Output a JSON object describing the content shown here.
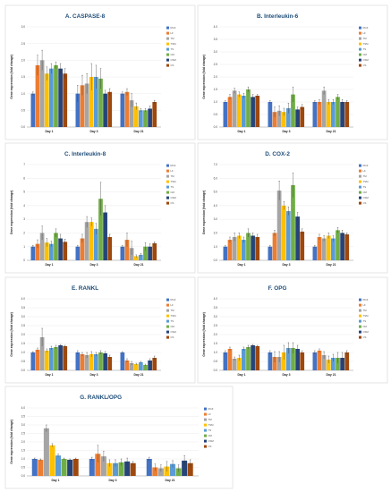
{
  "colors": {
    "RGF": "#4472c4",
    "LF": "#ed7d31",
    "TM": "#a5a5a5",
    "TSM": "#ffc000",
    "TS": "#5b9bd5",
    "CM": "#70ad47",
    "CSM": "#264478",
    "CS": "#9e480e"
  },
  "chart_data": [
    {
      "type": "bar",
      "title": "A. CASPASE-8",
      "ylabel": "Gene expression (fold change)",
      "categories": [
        "Day 1",
        "Day 3",
        "Day 21"
      ],
      "legend": [
        "RGF",
        "LF",
        "TM",
        "TSM",
        "TS",
        "CM",
        "CSM",
        "CS"
      ],
      "ylim": [
        0,
        3.0
      ],
      "yticks": [
        "0.0",
        "0.5",
        "1.0",
        "1.5",
        "2.0",
        "2.5",
        "3.0"
      ],
      "series": [
        {
          "name": "RGF",
          "values": [
            1.0,
            1.0,
            1.0
          ],
          "errors": [
            0.05,
            0.25,
            0.05
          ]
        },
        {
          "name": "LF",
          "values": [
            1.85,
            1.25,
            1.05
          ],
          "errors": [
            0.3,
            0.3,
            0.1
          ]
        },
        {
          "name": "TM",
          "values": [
            2.0,
            1.3,
            0.8
          ],
          "errors": [
            0.3,
            0.3,
            0.2
          ]
        },
        {
          "name": "TSM",
          "values": [
            1.6,
            1.5,
            0.62
          ],
          "errors": [
            0.2,
            0.4,
            0.1
          ]
        },
        {
          "name": "TS",
          "values": [
            1.75,
            1.5,
            0.5
          ],
          "errors": [
            0.15,
            0.35,
            0.05
          ]
        },
        {
          "name": "CM",
          "values": [
            1.85,
            1.45,
            0.5
          ],
          "errors": [
            0.1,
            0.3,
            0.05
          ]
        },
        {
          "name": "CSM",
          "values": [
            1.75,
            1.0,
            0.55
          ],
          "errors": [
            0.15,
            0.1,
            0.08
          ]
        },
        {
          "name": "CS",
          "values": [
            1.6,
            1.05,
            0.75
          ],
          "errors": [
            0.15,
            0.1,
            0.05
          ]
        }
      ]
    },
    {
      "type": "bar",
      "title": "B. Interleukin-6",
      "ylabel": "Gene expression (fold change)",
      "categories": [
        "Day 1",
        "Day 3",
        "Day 21"
      ],
      "legend": [
        "RGF",
        "LF",
        "TM",
        "TSM",
        "TS",
        "CM",
        "CSM",
        "CS"
      ],
      "ylim": [
        0,
        4.0
      ],
      "yticks": [
        "0.0",
        "0.5",
        "1.0",
        "1.5",
        "2.0",
        "2.5",
        "3.0",
        "3.5",
        "4.0"
      ],
      "series": [
        {
          "name": "RGF",
          "values": [
            1.0,
            1.0,
            1.0
          ],
          "errors": [
            0.05,
            0.05,
            0.05
          ]
        },
        {
          "name": "LF",
          "values": [
            1.2,
            0.6,
            1.0
          ],
          "errors": [
            0.1,
            0.2,
            0.1
          ]
        },
        {
          "name": "TM",
          "values": [
            1.45,
            0.65,
            1.45
          ],
          "errors": [
            0.1,
            0.2,
            0.15
          ]
        },
        {
          "name": "TSM",
          "values": [
            1.3,
            0.6,
            1.0
          ],
          "errors": [
            0.1,
            0.15,
            0.1
          ]
        },
        {
          "name": "TS",
          "values": [
            1.25,
            0.75,
            1.0
          ],
          "errors": [
            0.1,
            0.2,
            0.1
          ]
        },
        {
          "name": "CM",
          "values": [
            1.5,
            1.3,
            1.2
          ],
          "errors": [
            0.1,
            0.3,
            0.1
          ]
        },
        {
          "name": "CSM",
          "values": [
            1.2,
            0.7,
            1.0
          ],
          "errors": [
            0.1,
            0.1,
            0.1
          ]
        },
        {
          "name": "CS",
          "values": [
            1.25,
            0.8,
            1.0
          ],
          "errors": [
            0.05,
            0.1,
            0.05
          ]
        }
      ]
    },
    {
      "type": "bar",
      "title": "C. Interleukin-8",
      "ylabel": "Gene expression (fold change)",
      "categories": [
        "Day 1",
        "Day 3",
        "Day 21"
      ],
      "legend": [
        "RGF",
        "LF",
        "TM",
        "TSM",
        "TS",
        "CM",
        "CSM",
        "CS"
      ],
      "ylim": [
        0,
        7.0
      ],
      "yticks": [
        "0",
        "1",
        "2",
        "3",
        "4",
        "5",
        "6",
        "7"
      ],
      "series": [
        {
          "name": "RGF",
          "values": [
            1.0,
            1.0,
            1.0
          ],
          "errors": [
            0.1,
            0.1,
            0.1
          ]
        },
        {
          "name": "LF",
          "values": [
            1.2,
            1.6,
            1.5
          ],
          "errors": [
            0.3,
            0.3,
            0.5
          ]
        },
        {
          "name": "TM",
          "values": [
            2.0,
            2.8,
            0.9
          ],
          "errors": [
            0.5,
            0.4,
            0.5
          ]
        },
        {
          "name": "TSM",
          "values": [
            1.3,
            2.8,
            0.3
          ],
          "errors": [
            0.3,
            0.3,
            0.1
          ]
        },
        {
          "name": "TS",
          "values": [
            1.2,
            2.3,
            0.4
          ],
          "errors": [
            0.2,
            0.4,
            0.1
          ]
        },
        {
          "name": "CM",
          "values": [
            2.0,
            4.5,
            1.0
          ],
          "errors": [
            0.3,
            1.2,
            0.3
          ]
        },
        {
          "name": "CSM",
          "values": [
            1.6,
            3.5,
            1.0
          ],
          "errors": [
            0.3,
            0.5,
            0.2
          ]
        },
        {
          "name": "CS",
          "values": [
            1.35,
            1.7,
            1.25
          ],
          "errors": [
            0.2,
            0.2,
            0.1
          ]
        }
      ]
    },
    {
      "type": "bar",
      "title": "D. COX-2",
      "ylabel": "Gene expression (fold change)",
      "categories": [
        "Day 1",
        "Day 3",
        "Day 21"
      ],
      "legend": [
        "RGF",
        "LF",
        "TM",
        "TSM",
        "TS",
        "CM",
        "CSM",
        "CS"
      ],
      "ylim": [
        0,
        7.0
      ],
      "yticks": [
        "0.0",
        "1.0",
        "2.0",
        "3.0",
        "4.0",
        "5.0",
        "6.0",
        "7.0"
      ],
      "series": [
        {
          "name": "RGF",
          "values": [
            1.0,
            1.0,
            1.0
          ],
          "errors": [
            0.1,
            0.1,
            0.1
          ]
        },
        {
          "name": "LF",
          "values": [
            1.5,
            2.0,
            1.7
          ],
          "errors": [
            0.2,
            0.2,
            0.2
          ]
        },
        {
          "name": "TM",
          "values": [
            1.7,
            5.1,
            1.6
          ],
          "errors": [
            0.3,
            0.7,
            0.2
          ]
        },
        {
          "name": "TSM",
          "values": [
            1.8,
            4.0,
            1.8
          ],
          "errors": [
            0.2,
            0.3,
            0.2
          ]
        },
        {
          "name": "TS",
          "values": [
            1.5,
            3.6,
            1.6
          ],
          "errors": [
            0.2,
            0.3,
            0.2
          ]
        },
        {
          "name": "CM",
          "values": [
            2.0,
            5.5,
            2.2
          ],
          "errors": [
            0.3,
            0.9,
            0.2
          ]
        },
        {
          "name": "CSM",
          "values": [
            1.8,
            3.2,
            2.0
          ],
          "errors": [
            0.2,
            0.3,
            0.2
          ]
        },
        {
          "name": "CS",
          "values": [
            1.7,
            2.1,
            1.9
          ],
          "errors": [
            0.2,
            0.2,
            0.1
          ]
        }
      ]
    },
    {
      "type": "bar",
      "title": "E. RANKL",
      "ylabel": "Gene expression (fold change)",
      "categories": [
        "Day 1",
        "Day 3",
        "Day 21"
      ],
      "legend": [
        "RGF",
        "LF",
        "TM",
        "TSM",
        "TS",
        "CM",
        "CSM",
        "CS"
      ],
      "ylim": [
        0,
        4.0
      ],
      "yticks": [
        "0.0",
        "0.5",
        "1.0",
        "1.5",
        "2.0",
        "2.5",
        "3.0",
        "3.5",
        "4.0"
      ],
      "series": [
        {
          "name": "RGF",
          "values": [
            1.0,
            1.0,
            1.0
          ],
          "errors": [
            0.05,
            0.1,
            0.05
          ]
        },
        {
          "name": "LF",
          "values": [
            1.15,
            0.9,
            0.55
          ],
          "errors": [
            0.1,
            0.1,
            0.1
          ]
        },
        {
          "name": "TM",
          "values": [
            1.85,
            0.85,
            0.4
          ],
          "errors": [
            0.5,
            0.15,
            0.1
          ]
        },
        {
          "name": "TSM",
          "values": [
            1.1,
            0.9,
            0.35
          ],
          "errors": [
            0.1,
            0.15,
            0.05
          ]
        },
        {
          "name": "TS",
          "values": [
            1.25,
            0.9,
            0.45
          ],
          "errors": [
            0.1,
            0.1,
            0.05
          ]
        },
        {
          "name": "CM",
          "values": [
            1.3,
            1.0,
            0.3
          ],
          "errors": [
            0.1,
            0.1,
            0.05
          ]
        },
        {
          "name": "CSM",
          "values": [
            1.4,
            0.95,
            0.55
          ],
          "errors": [
            0.05,
            0.1,
            0.1
          ]
        },
        {
          "name": "CS",
          "values": [
            1.35,
            0.75,
            0.7
          ],
          "errors": [
            0.05,
            0.1,
            0.1
          ]
        }
      ]
    },
    {
      "type": "bar",
      "title": "F. OPG",
      "ylabel": "Gene expression (fold change)",
      "categories": [
        "Day 1",
        "Day 3",
        "Day 21"
      ],
      "legend": [
        "RGF",
        "LF",
        "TM",
        "TSM",
        "TS",
        "CM",
        "CSM",
        "CS"
      ],
      "ylim": [
        0,
        4.0
      ],
      "yticks": [
        "0.0",
        "0.5",
        "1.0",
        "1.5",
        "2.0",
        "2.5",
        "3.0",
        "3.5",
        "4.0"
      ],
      "series": [
        {
          "name": "RGF",
          "values": [
            1.0,
            1.0,
            1.0
          ],
          "errors": [
            0.1,
            0.1,
            0.1
          ]
        },
        {
          "name": "LF",
          "values": [
            1.2,
            0.75,
            1.1
          ],
          "errors": [
            0.1,
            0.3,
            0.1
          ]
        },
        {
          "name": "TM",
          "values": [
            0.65,
            0.75,
            0.85
          ],
          "errors": [
            0.1,
            0.3,
            0.2
          ]
        },
        {
          "name": "TSM",
          "values": [
            0.7,
            1.0,
            0.6
          ],
          "errors": [
            0.15,
            0.4,
            0.2
          ]
        },
        {
          "name": "TS",
          "values": [
            1.2,
            1.25,
            0.7
          ],
          "errors": [
            0.1,
            0.3,
            0.2
          ]
        },
        {
          "name": "CM",
          "values": [
            1.3,
            1.25,
            0.7
          ],
          "errors": [
            0.1,
            0.3,
            0.3
          ]
        },
        {
          "name": "CSM",
          "values": [
            1.4,
            1.2,
            0.7
          ],
          "errors": [
            0.05,
            0.2,
            0.3
          ]
        },
        {
          "name": "CS",
          "values": [
            1.35,
            1.0,
            1.0
          ],
          "errors": [
            0.05,
            0.1,
            0.1
          ]
        }
      ]
    },
    {
      "type": "bar",
      "title": "G. RANKL/OPG",
      "ylabel": "Gene expression (fold change)",
      "categories": [
        "Day 1",
        "Day 3",
        "Day 21"
      ],
      "legend": [
        "RGF",
        "LF",
        "TM",
        "TSM",
        "TS",
        "CM",
        "CSM",
        "CS"
      ],
      "ylim": [
        0,
        4.0
      ],
      "yticks": [
        "0.0",
        "0.5",
        "1.0",
        "1.5",
        "2.0",
        "2.5",
        "3.0",
        "3.5",
        "4.0"
      ],
      "series": [
        {
          "name": "RGF",
          "values": [
            1.0,
            1.0,
            1.0
          ],
          "errors": [
            0.05,
            0.1,
            0.1
          ]
        },
        {
          "name": "LF",
          "values": [
            0.95,
            1.3,
            0.5
          ],
          "errors": [
            0.05,
            0.5,
            0.2
          ]
        },
        {
          "name": "TM",
          "values": [
            2.8,
            1.15,
            0.45
          ],
          "errors": [
            0.2,
            0.3,
            0.2
          ]
        },
        {
          "name": "TSM",
          "values": [
            1.8,
            0.75,
            0.55
          ],
          "errors": [
            0.1,
            0.2,
            0.3
          ]
        },
        {
          "name": "TS",
          "values": [
            1.2,
            0.75,
            0.7
          ],
          "errors": [
            0.1,
            0.2,
            0.2
          ]
        },
        {
          "name": "CM",
          "values": [
            1.0,
            0.8,
            0.45
          ],
          "errors": [
            0.05,
            0.2,
            0.2
          ]
        },
        {
          "name": "CSM",
          "values": [
            0.95,
            0.85,
            0.9
          ],
          "errors": [
            0.05,
            0.2,
            0.3
          ]
        },
        {
          "name": "CS",
          "values": [
            1.0,
            0.75,
            0.75
          ],
          "errors": [
            0.05,
            0.1,
            0.2
          ]
        }
      ]
    }
  ]
}
